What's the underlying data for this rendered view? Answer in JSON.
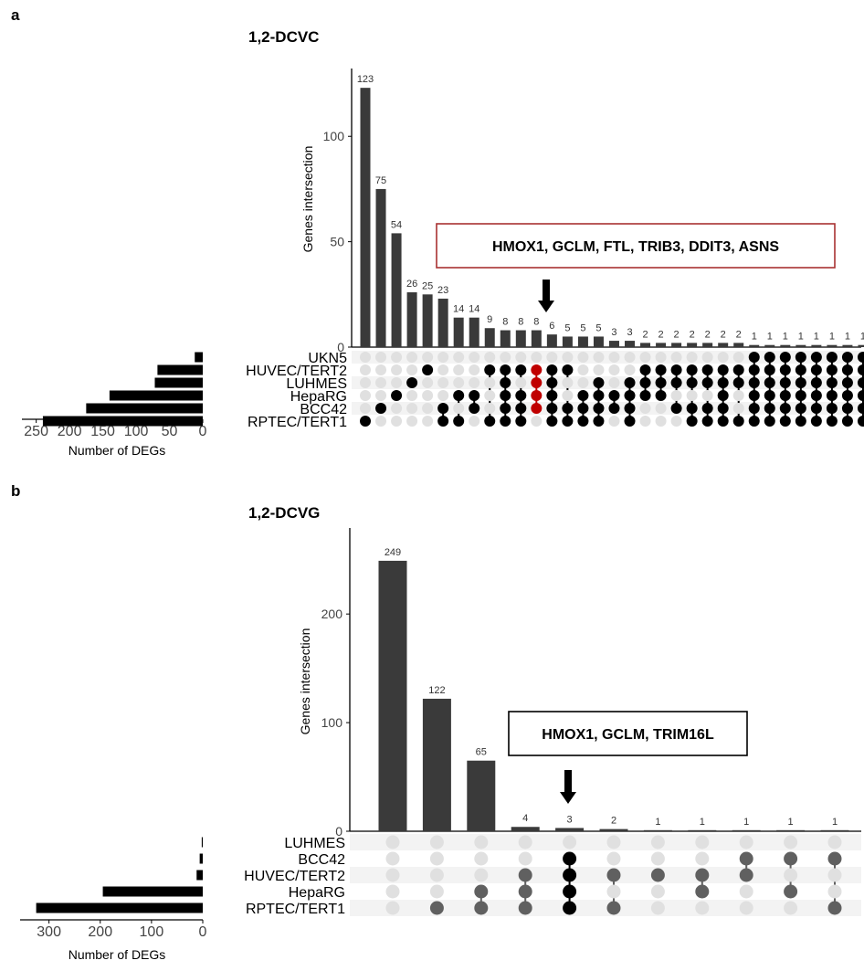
{
  "panels": [
    {
      "panel_label": "a",
      "title": "1,2-DCVC",
      "ylabel": "Genes intersection",
      "sets_xlabel": "Number of DEGs",
      "annotation": "HMOX1, GCLM, FTL, TRIB3, DDIT3, ASNS",
      "annotation_border": "#a83232",
      "highlight_color": "#c00000",
      "highlight_column": 11
    },
    {
      "panel_label": "b",
      "title": "1,2-DCVG",
      "ylabel": "Genes intersection",
      "sets_xlabel": "Number of DEGs",
      "annotation": "HMOX1, GCLM, TRIM16L",
      "annotation_border": "#000000",
      "highlight_color": "#000000",
      "highlight_column": 4
    }
  ],
  "colors": {
    "bar": "#3a3a3a",
    "dot_off": "#e0e0e0",
    "dot_on": "#000000",
    "dot_on_grey": "#606060",
    "stripe": "#f3f3f3"
  },
  "chart_data": [
    {
      "type": "bar",
      "subtype": "upset",
      "sets": [
        "UKN5",
        "HUVEC/TERT2",
        "LUHMES",
        "HepaRG",
        "BCC42",
        "RPTEC/TERT1"
      ],
      "set_sizes": [
        12,
        68,
        72,
        140,
        175,
        240
      ],
      "set_size_ticks": [
        250,
        200,
        150,
        100,
        50,
        0
      ],
      "set_size_lim": [
        0,
        255
      ],
      "values": [
        123,
        75,
        54,
        26,
        25,
        23,
        14,
        14,
        9,
        8,
        8,
        8,
        6,
        5,
        5,
        5,
        3,
        3,
        2,
        2,
        2,
        2,
        2,
        2,
        2,
        1,
        1,
        1,
        1,
        1,
        1,
        1,
        1
      ],
      "memberships": [
        [
          5
        ],
        [
          4
        ],
        [
          3
        ],
        [
          2
        ],
        [
          1
        ],
        [
          4,
          5
        ],
        [
          3,
          5
        ],
        [
          3,
          4
        ],
        [
          1,
          5
        ],
        [
          1,
          2,
          3,
          4,
          5
        ],
        [
          1,
          3,
          4,
          5
        ],
        [
          1,
          2,
          3,
          4
        ],
        [
          1,
          2,
          3,
          4,
          5
        ],
        [
          1,
          4,
          5
        ],
        [
          3,
          4,
          5
        ],
        [
          2,
          3,
          4,
          5
        ],
        [
          3,
          4
        ],
        [
          2,
          3,
          4,
          5
        ],
        [
          1,
          2,
          3
        ],
        [
          1,
          2,
          3
        ],
        [
          1,
          2,
          4
        ],
        [
          1,
          2,
          4,
          5
        ],
        [
          1,
          2,
          4,
          5
        ],
        [
          1,
          2,
          3,
          4,
          5
        ],
        [
          1,
          2,
          5
        ],
        [
          0,
          1,
          2,
          3,
          4,
          5
        ],
        [
          0,
          1,
          2,
          3,
          4,
          5
        ],
        [
          0,
          1,
          2,
          3,
          4,
          5
        ],
        [
          0,
          1,
          2,
          3,
          4,
          5
        ],
        [
          0,
          1,
          2,
          3,
          4,
          5
        ],
        [
          0,
          1,
          2,
          3,
          4,
          5
        ],
        [
          0,
          1,
          2,
          3,
          4,
          5
        ],
        [
          0,
          1,
          2,
          3,
          4,
          5
        ]
      ],
      "ylim": [
        0,
        130
      ],
      "yticks": [
        0,
        50,
        100
      ],
      "grey_dots": false
    },
    {
      "type": "bar",
      "subtype": "upset",
      "sets": [
        "LUHMES",
        "BCC42",
        "HUVEC/TERT2",
        "HepaRG",
        "RPTEC/TERT1"
      ],
      "set_sizes": [
        2,
        6,
        12,
        195,
        325
      ],
      "set_size_ticks": [
        300,
        200,
        100,
        0
      ],
      "set_size_lim": [
        0,
        335
      ],
      "values": [
        249,
        122,
        65,
        4,
        3,
        2,
        1,
        1,
        1,
        1,
        1
      ],
      "memberships": [
        [],
        [
          4
        ],
        [
          3,
          4
        ],
        [
          2,
          3,
          4
        ],
        [
          1,
          2,
          3,
          4
        ],
        [
          2,
          4
        ],
        [
          2
        ],
        [
          2,
          3
        ],
        [
          1,
          2
        ],
        [
          1,
          3
        ],
        [
          1,
          4
        ]
      ],
      "ylim": [
        0,
        275
      ],
      "yticks": [
        0,
        100,
        200
      ],
      "grey_dots": true
    }
  ]
}
